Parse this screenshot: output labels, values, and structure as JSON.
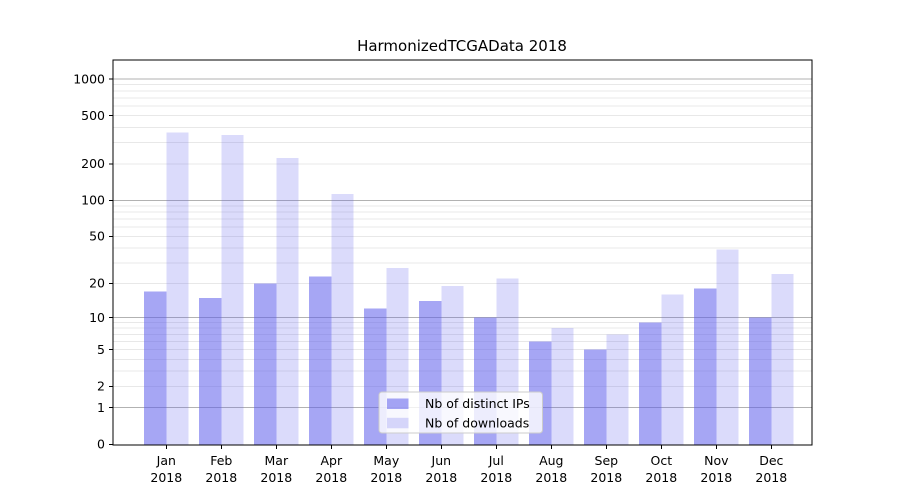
{
  "chart_data": {
    "type": "bar",
    "title": "HarmonizedTCGAData 2018",
    "categories": [
      "Jan 2018",
      "Feb 2018",
      "Mar 2018",
      "Apr 2018",
      "May 2018",
      "Jun 2018",
      "Jul 2018",
      "Aug 2018",
      "Sep 2018",
      "Oct 2018",
      "Nov 2018",
      "Dec 2018"
    ],
    "series": [
      {
        "name": "Nb of distinct IPs",
        "color": "rgba(92,92,235,0.55)",
        "values": [
          17,
          15,
          20,
          23,
          12,
          14,
          10,
          6,
          5,
          9,
          18,
          10
        ]
      },
      {
        "name": "Nb of downloads",
        "color": "rgba(92,92,235,0.22)",
        "values": [
          364,
          346,
          223,
          113,
          27,
          19,
          22,
          8,
          7,
          16,
          39,
          24
        ]
      }
    ],
    "y_axis": {
      "scale": "log1p",
      "tick_values": [
        0,
        1,
        2,
        5,
        10,
        20,
        50,
        100,
        200,
        500,
        1000
      ],
      "tick_labels": [
        "0",
        "1",
        "2",
        "5",
        "10",
        "20",
        "50",
        "100",
        "200",
        "500",
        "1000"
      ],
      "top_value": 1455
    },
    "legend": {
      "entries": [
        "Nb of distinct IPs",
        "Nb of downloads"
      ],
      "position": "lower center"
    },
    "grid": {
      "major": true,
      "minor": true
    },
    "style": {
      "major_grid_color": "#b2b2b2",
      "minor_grid_color": "#e8e8e8",
      "axis_color": "#000000",
      "text_color": "#000000",
      "background": "#ffffff",
      "legend_bg": "rgba(255,255,255,0.8)",
      "legend_border_color": "#cccccc"
    }
  }
}
